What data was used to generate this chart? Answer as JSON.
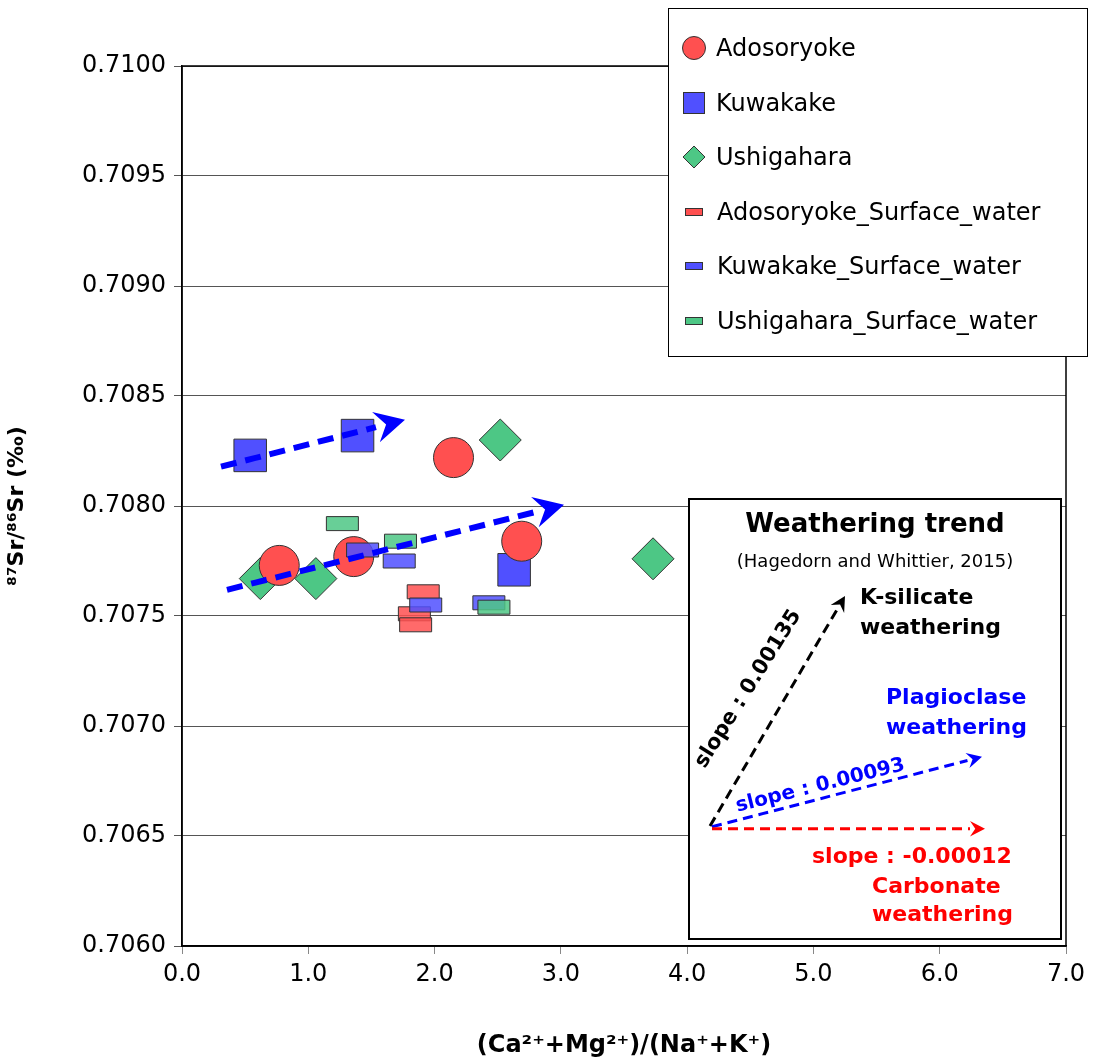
{
  "chart_data": {
    "type": "scatter",
    "xlabel": "(Ca²⁺+Mg²⁺)/(Na⁺+K⁺)",
    "ylabel": "⁸⁷Sr/⁸⁶Sr (‰)",
    "series": [
      {
        "name": "Adosoryoke",
        "color": "#ff5050",
        "marker": "circle",
        "x": [
          0.77,
          1.36,
          2.15,
          2.69
        ],
        "values": [
          0.70773,
          0.70777,
          0.70822,
          0.70784
        ]
      },
      {
        "name": "Kuwakake",
        "color": "#5050ff",
        "marker": "square",
        "x": [
          0.54,
          1.39,
          2.63
        ],
        "values": [
          0.70823,
          0.70832,
          0.70771
        ]
      },
      {
        "name": "Ushigahara",
        "color": "#4dc785",
        "marker": "diamond",
        "x": [
          0.62,
          1.06,
          2.52,
          3.73
        ],
        "values": [
          0.70767,
          0.70767,
          0.7083,
          0.70776
        ]
      },
      {
        "name": "Adosoryoke_Surface_water",
        "color": "#ff5050",
        "x": [
          1.91,
          1.84,
          1.85
        ],
        "values": [
          0.70761,
          0.70751,
          0.70746
        ]
      },
      {
        "name": "Kuwakake_Surface_water",
        "color": "#5050ff",
        "x": [
          1.43,
          1.72,
          1.93,
          2.43
        ],
        "values": [
          0.7078,
          0.70775,
          0.70755,
          0.70756
        ]
      },
      {
        "name": "Ushigahara_Surface_water",
        "color": "#4dc785",
        "x": [
          1.27,
          1.73,
          2.47
        ],
        "values": [
          0.70792,
          0.70784,
          0.70754
        ]
      }
    ],
    "xlim": [
      0,
      7
    ],
    "ylim": [
      0.706,
      0.71
    ],
    "xticks": [
      {
        "value": 0,
        "label": "0.0"
      },
      {
        "value": 1,
        "label": "1.0"
      },
      {
        "value": 2,
        "label": "2.0"
      },
      {
        "value": 3,
        "label": "3.0"
      },
      {
        "value": 4,
        "label": "4.0"
      },
      {
        "value": 5,
        "label": "5.0"
      },
      {
        "value": 6,
        "label": "6.0"
      },
      {
        "value": 7,
        "label": "7.0"
      }
    ],
    "yticks": [
      {
        "value": 0.706,
        "label": "0.7060"
      },
      {
        "value": 0.7065,
        "label": "0.7065"
      },
      {
        "value": 0.707,
        "label": "0.7070"
      },
      {
        "value": 0.7075,
        "label": "0.7075"
      },
      {
        "value": 0.708,
        "label": "0.7080"
      },
      {
        "value": 0.7085,
        "label": "0.7085"
      },
      {
        "value": 0.709,
        "label": "0.7090"
      },
      {
        "value": 0.7095,
        "label": "0.7095"
      },
      {
        "value": 0.71,
        "label": "0.7100"
      }
    ],
    "grid": "y",
    "legend": "top right",
    "annotations": [
      "Weathering trend",
      "(Hagedorn and Whittier, 2015)",
      "K-silicate weathering",
      "slope : 0.00135",
      "Plagioclase weathering",
      "slope : 0.00093",
      "slope : -0.00012",
      "Carbonate weathering"
    ]
  }
}
